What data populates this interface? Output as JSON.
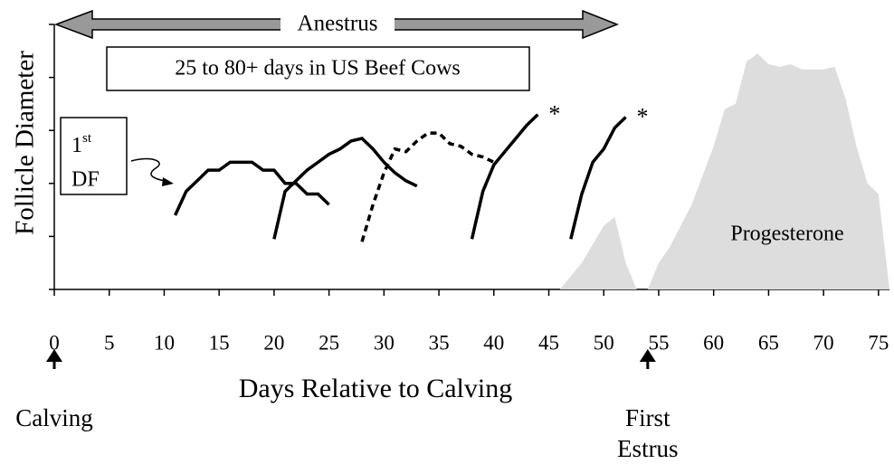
{
  "chart_data": {
    "type": "line",
    "ylabel": "Follicle Diameter",
    "xlabel": "Days Relative to Calving",
    "xlim": [
      0,
      76
    ],
    "xticks": [
      0,
      5,
      10,
      15,
      20,
      25,
      30,
      35,
      40,
      45,
      50,
      55,
      60,
      65,
      70,
      75
    ],
    "ylim": [
      0,
      5
    ],
    "yticks": [
      0,
      1,
      2,
      3,
      4,
      5
    ],
    "area": {
      "label": "Progesterone",
      "color": "#dddddd",
      "x": [
        46,
        48,
        50,
        51,
        52,
        53,
        54,
        55,
        56,
        58,
        60,
        61,
        62,
        63,
        64,
        65,
        66,
        67,
        68,
        69,
        70,
        71,
        72,
        73,
        74,
        75,
        76
      ],
      "values": [
        0,
        0.5,
        1.2,
        1.37,
        0.5,
        0,
        0,
        0.5,
        0.8,
        1.6,
        2.7,
        3.4,
        3.5,
        4.3,
        4.45,
        4.25,
        4.2,
        4.25,
        4.15,
        4.15,
        4.15,
        4.2,
        3.6,
        2.7,
        2.0,
        1.8,
        0
      ]
    },
    "series": [
      {
        "color": "#000000",
        "style": "solid",
        "x": [
          11,
          12,
          13,
          14,
          15,
          16,
          17,
          18,
          19,
          20,
          21,
          22,
          23,
          24,
          25
        ],
        "values": [
          1.4,
          1.85,
          2.05,
          2.25,
          2.25,
          2.4,
          2.4,
          2.4,
          2.25,
          2.25,
          2.0,
          2.0,
          1.8,
          1.8,
          1.6
        ]
      },
      {
        "color": "#000000",
        "style": "solid",
        "x": [
          20,
          21,
          22,
          23,
          24,
          25,
          26,
          27,
          28,
          29,
          30,
          31,
          32,
          33
        ],
        "values": [
          0.95,
          1.85,
          2.05,
          2.25,
          2.4,
          2.55,
          2.65,
          2.8,
          2.85,
          2.65,
          2.4,
          2.2,
          2.05,
          1.95
        ]
      },
      {
        "color": "#000000",
        "style": "dashed",
        "x": [
          28,
          29,
          30,
          31,
          32,
          33,
          34,
          35,
          36,
          37,
          38,
          39,
          40
        ],
        "values": [
          0.9,
          1.6,
          2.2,
          2.65,
          2.6,
          2.8,
          2.95,
          2.95,
          2.75,
          2.7,
          2.55,
          2.5,
          2.4
        ]
      },
      {
        "color": "#000000",
        "style": "solid",
        "end_label": "*",
        "x": [
          38,
          39,
          40,
          41,
          42,
          43,
          44
        ],
        "values": [
          0.95,
          1.85,
          2.35,
          2.6,
          2.85,
          3.1,
          3.3
        ]
      },
      {
        "color": "#000000",
        "style": "solid",
        "end_label": "*",
        "x": [
          47,
          48,
          49,
          50,
          51,
          52
        ],
        "values": [
          0.95,
          1.8,
          2.4,
          2.65,
          3.05,
          3.25
        ]
      }
    ],
    "annotations": {
      "anestrus": "Anestrus",
      "duration": "25 to 80+ days in US Beef Cows",
      "first_df": {
        "number": "1",
        "suffix": "st",
        "line2": "DF"
      }
    },
    "events": [
      {
        "x": 0,
        "lines": [
          "Calving"
        ]
      },
      {
        "x": 54,
        "lines": [
          "First",
          "Estrus"
        ]
      }
    ]
  }
}
